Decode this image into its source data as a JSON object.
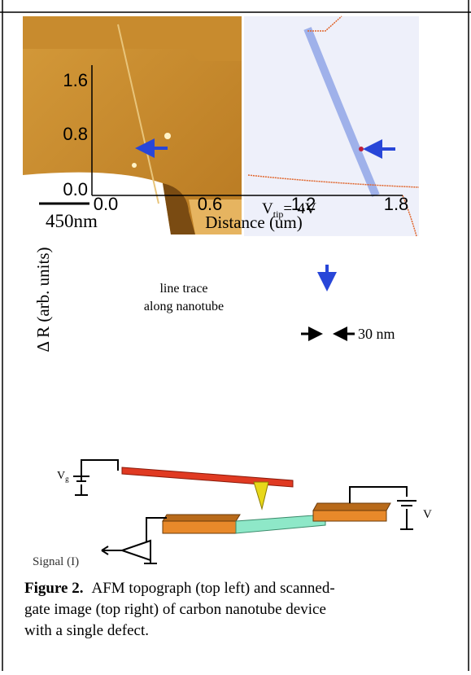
{
  "figure": {
    "plot": {
      "yticks": [
        "1.6",
        "0.8",
        "0.0"
      ],
      "xticks": [
        "0.0",
        "0.6",
        "1.2",
        "1.8"
      ],
      "x_label": "Distance (um)",
      "y_label": "Δ R  (arb. units)"
    },
    "scale_bar": "450nm",
    "tip_voltage": {
      "symbol": "V",
      "subscript": "tip",
      "value": "=-4V"
    },
    "annotation": [
      "line trace",
      "along nanotube"
    ],
    "width_label": "30 nm",
    "schematic": {
      "gate": "V",
      "gate_sub": "g",
      "bias": "V",
      "signal": "Signal (I)"
    },
    "caption": {
      "label": "Figure 2.",
      "lines": [
        "AFM topograph (top left) and scanned-",
        "gate image (top right) of carbon nanotube device",
        "with a single defect."
      ]
    }
  }
}
